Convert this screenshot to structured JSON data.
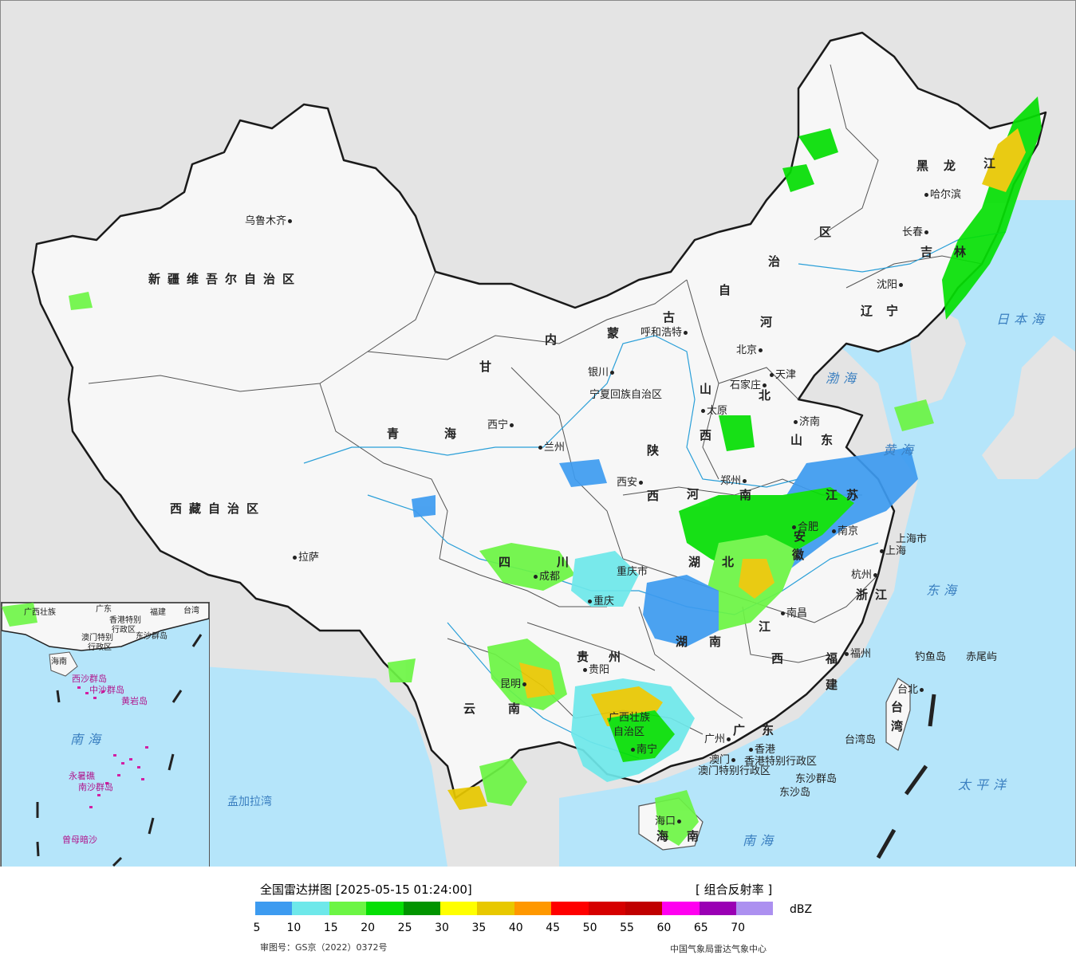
{
  "map": {
    "province_labels": [
      {
        "key": "xinjiang",
        "text": "新疆维吾尔自治区"
      },
      {
        "key": "xizang",
        "text": "西藏自治区"
      },
      {
        "key": "qinghai_1",
        "text": "青"
      },
      {
        "key": "qinghai_2",
        "text": "海"
      },
      {
        "key": "gansu",
        "text": "甘"
      },
      {
        "key": "neimenggu_1",
        "text": "内"
      },
      {
        "key": "neimenggu_2",
        "text": "蒙"
      },
      {
        "key": "neimenggu_3",
        "text": "古"
      },
      {
        "key": "neimenggu_4",
        "text": "自"
      },
      {
        "key": "neimenggu_5",
        "text": "治"
      },
      {
        "key": "neimenggu_6",
        "text": "区"
      },
      {
        "key": "heilongjiang_1",
        "text": "黑"
      },
      {
        "key": "heilongjiang_2",
        "text": "龙"
      },
      {
        "key": "heilongjiang_3",
        "text": "江"
      },
      {
        "key": "jilin_1",
        "text": "吉"
      },
      {
        "key": "jilin_2",
        "text": "林"
      },
      {
        "key": "liaoning_1",
        "text": "辽"
      },
      {
        "key": "liaoning_2",
        "text": "宁"
      },
      {
        "key": "hebei_1",
        "text": "河"
      },
      {
        "key": "hebei_2",
        "text": "北"
      },
      {
        "key": "shanxi_1",
        "text": "山"
      },
      {
        "key": "shanxi_2",
        "text": "西"
      },
      {
        "key": "shandong_1",
        "text": "山"
      },
      {
        "key": "shandong_2",
        "text": "东"
      },
      {
        "key": "shaanxi_1",
        "text": "陕"
      },
      {
        "key": "shaanxi_2",
        "text": "西"
      },
      {
        "key": "henan_1",
        "text": "河"
      },
      {
        "key": "henan_2",
        "text": "南"
      },
      {
        "key": "sichuan_1",
        "text": "四"
      },
      {
        "key": "sichuan_2",
        "text": "川"
      },
      {
        "key": "hubei_1",
        "text": "湖"
      },
      {
        "key": "hubei_2",
        "text": "北"
      },
      {
        "key": "hunan_1",
        "text": "湖"
      },
      {
        "key": "hunan_2",
        "text": "南"
      },
      {
        "key": "anhui_1",
        "text": "安"
      },
      {
        "key": "anhui_2",
        "text": "徽"
      },
      {
        "key": "jiangsu_1",
        "text": "江"
      },
      {
        "key": "jiangsu_2",
        "text": "苏"
      },
      {
        "key": "zhejiang",
        "text": "浙江"
      },
      {
        "key": "jiangxi_1",
        "text": "江"
      },
      {
        "key": "jiangxi_2",
        "text": "西"
      },
      {
        "key": "fujian_1",
        "text": "福"
      },
      {
        "key": "fujian_2",
        "text": "建"
      },
      {
        "key": "guizhou_1",
        "text": "贵"
      },
      {
        "key": "guizhou_2",
        "text": "州"
      },
      {
        "key": "yunnan_1",
        "text": "云"
      },
      {
        "key": "yunnan_2",
        "text": "南"
      },
      {
        "key": "guangxi_1",
        "text": "广西壮族"
      },
      {
        "key": "guangxi_2",
        "text": "自治区"
      },
      {
        "key": "guangdong_1",
        "text": "广"
      },
      {
        "key": "guangdong_2",
        "text": "东"
      },
      {
        "key": "taiwan_1",
        "text": "台"
      },
      {
        "key": "taiwan_2",
        "text": "湾"
      },
      {
        "key": "hainan_1",
        "text": "海"
      },
      {
        "key": "hainan_2",
        "text": "南"
      },
      {
        "key": "chongqing",
        "text": "重庆市"
      },
      {
        "key": "shanghai",
        "text": "上海市"
      },
      {
        "key": "ningxia",
        "text": "宁夏回族自治区"
      },
      {
        "key": "hongkong",
        "text": "香港特别行政区"
      },
      {
        "key": "macau",
        "text": "澳门特别行政区"
      }
    ],
    "cities": [
      {
        "key": "urumqi",
        "text": "乌鲁木齐"
      },
      {
        "key": "lhasa",
        "text": "拉萨"
      },
      {
        "key": "xining",
        "text": "西宁"
      },
      {
        "key": "lanzhou",
        "text": "兰州"
      },
      {
        "key": "yinchuan",
        "text": "银川"
      },
      {
        "key": "hohhot",
        "text": "呼和浩特"
      },
      {
        "key": "beijing",
        "text": "北京"
      },
      {
        "key": "tianjin",
        "text": "天津"
      },
      {
        "key": "shijiazhuang",
        "text": "石家庄"
      },
      {
        "key": "taiyuan",
        "text": "太原"
      },
      {
        "key": "jinan",
        "text": "济南"
      },
      {
        "key": "xian",
        "text": "西安"
      },
      {
        "key": "zhengzhou",
        "text": "郑州"
      },
      {
        "key": "chengdu",
        "text": "成都"
      },
      {
        "key": "chongqing_city",
        "text": "重庆"
      },
      {
        "key": "hefei",
        "text": "合肥"
      },
      {
        "key": "nanjing",
        "text": "南京"
      },
      {
        "key": "shanghai_city",
        "text": "上海"
      },
      {
        "key": "hangzhou",
        "text": "杭州"
      },
      {
        "key": "nanchang",
        "text": "南昌"
      },
      {
        "key": "fuzhou",
        "text": "福州"
      },
      {
        "key": "guiyang",
        "text": "贵阳"
      },
      {
        "key": "kunming",
        "text": "昆明"
      },
      {
        "key": "nanning",
        "text": "南宁"
      },
      {
        "key": "guangzhou",
        "text": "广州"
      },
      {
        "key": "macau_city",
        "text": "澳门"
      },
      {
        "key": "hongkong_city",
        "text": "香港"
      },
      {
        "key": "taipei",
        "text": "台北"
      },
      {
        "key": "haikou",
        "text": "海口"
      },
      {
        "key": "harbin",
        "text": "哈尔滨"
      },
      {
        "key": "changchun",
        "text": "长春"
      },
      {
        "key": "shenyang",
        "text": "沈阳"
      }
    ],
    "seas": [
      {
        "key": "japan_sea",
        "text": "日本海"
      },
      {
        "key": "bohai",
        "text": "渤海"
      },
      {
        "key": "yellow_sea",
        "text": "黄海"
      },
      {
        "key": "east_sea",
        "text": "东海"
      },
      {
        "key": "pacific",
        "text": "太平洋"
      },
      {
        "key": "south_sea",
        "text": "南海"
      },
      {
        "key": "bengal",
        "text": "孟加拉湾"
      }
    ],
    "islands": [
      {
        "key": "diaoyu",
        "text": "钓鱼岛"
      },
      {
        "key": "chiwei",
        "text": "赤尾屿"
      },
      {
        "key": "taiwan_island",
        "text": "台湾岛"
      },
      {
        "key": "dongsha_islands",
        "text": "东沙群岛"
      },
      {
        "key": "dongsha_island",
        "text": "东沙岛"
      }
    ],
    "inset": {
      "labels": [
        {
          "key": "guangxi",
          "text": "广西壮族"
        },
        {
          "key": "guangdong",
          "text": "广东"
        },
        {
          "key": "fujian",
          "text": "福建"
        },
        {
          "key": "taiwan",
          "text": "台湾"
        },
        {
          "key": "hk",
          "text": "香港特别"
        },
        {
          "key": "hk2",
          "text": "行政区"
        },
        {
          "key": "macau",
          "text": "澳门特别"
        },
        {
          "key": "macau2",
          "text": "行政区"
        },
        {
          "key": "dongsha",
          "text": "东沙群岛"
        },
        {
          "key": "hainan",
          "text": "海南"
        },
        {
          "key": "xisha",
          "text": "西沙群岛"
        },
        {
          "key": "zhongsha",
          "text": "中沙群岛"
        },
        {
          "key": "huangyan",
          "text": "黄岩岛"
        },
        {
          "key": "nanhai",
          "text": "南海"
        },
        {
          "key": "nansha",
          "text": "南沙群岛"
        },
        {
          "key": "yongshu",
          "text": "永暑礁"
        },
        {
          "key": "zengmu",
          "text": "曾母暗沙"
        }
      ]
    }
  },
  "legend": {
    "title": "全国雷达拼图 [2025-05-15 01:24:00]",
    "product": "[ 组合反射率 ]",
    "unit": "dBZ",
    "colors": [
      "#3d9bf0",
      "#6ee8ea",
      "#6cf544",
      "#05df04",
      "#019400",
      "#ffff00",
      "#e8c800",
      "#ff9800",
      "#ff0000",
      "#d60000",
      "#c00000",
      "#ff00f0",
      "#9a00b4",
      "#ac90f0"
    ],
    "ticks": [
      "5",
      "10",
      "15",
      "20",
      "25",
      "30",
      "35",
      "40",
      "45",
      "50",
      "55",
      "60",
      "65",
      "70"
    ],
    "review_number": "审图号：GS京（2022）0372号",
    "source": "中国气象局雷达气象中心"
  }
}
